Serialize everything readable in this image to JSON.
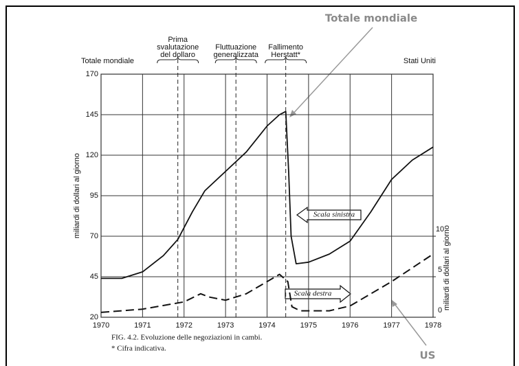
{
  "chart_data": {
    "type": "line",
    "xlim": [
      1970,
      1978
    ],
    "xticks": [
      1970,
      1971,
      1972,
      1973,
      1974,
      1975,
      1976,
      1977,
      1978
    ],
    "ylim": [
      20,
      170
    ],
    "yticks": [
      20,
      45,
      70,
      95,
      120,
      145,
      170
    ],
    "y2lim": [
      0,
      30
    ],
    "y2ticks": [
      0,
      5,
      10
    ],
    "grid": true,
    "ylabel": "miliardi di dollari al giorno",
    "y2label": "miliardi di dollari al giorno",
    "series": [
      {
        "name": "Totale mondiale",
        "color": "#111111",
        "dash": false,
        "x": [
          1970,
          1970.5,
          1971,
          1971.5,
          1971.85,
          1972.2,
          1972.5,
          1973,
          1973.5,
          1974,
          1974.3,
          1974.45,
          1974.52,
          1974.58,
          1974.7,
          1975,
          1975.5,
          1976,
          1976.5,
          1977,
          1977.5,
          1978
        ],
        "values": [
          44,
          44,
          48,
          58,
          68,
          85,
          98,
          110,
          122,
          138,
          145,
          147,
          110,
          70,
          53,
          54,
          59,
          67,
          85,
          105,
          117,
          125
        ]
      },
      {
        "name": "Stati Uniti",
        "color": "#111111",
        "dash": true,
        "axis": "y2",
        "x": [
          1970,
          1971,
          1972,
          1972.4,
          1972.6,
          1973,
          1973.5,
          1974,
          1974.3,
          1974.5,
          1974.6,
          1974.8,
          1975.5,
          1976,
          1977,
          1978
        ],
        "values": [
          0.6,
          1.0,
          1.9,
          2.9,
          2.5,
          2.1,
          2.9,
          4.4,
          5.3,
          4.4,
          1.3,
          0.8,
          0.8,
          1.4,
          4.4,
          7.8
        ]
      }
    ],
    "events": [
      {
        "x": 1971.85,
        "lines": [
          "Prima",
          "svalutazione",
          "del dollaro"
        ]
      },
      {
        "x": 1973.25,
        "lines": [
          "Fluttuazione",
          "generalizzata"
        ]
      },
      {
        "x": 1974.45,
        "lines": [
          "Fallimento",
          "Herstatt*"
        ]
      }
    ],
    "annotations": {
      "left_scale": "Scala sinistra",
      "right_scale": "Scala destra",
      "overlay_world": "Totale mondiale",
      "overlay_us": "US"
    },
    "caption": "FIG. 4.2. Evoluzione delle negoziazioni in cambi.",
    "footnote": "* Cifra indicativa."
  }
}
